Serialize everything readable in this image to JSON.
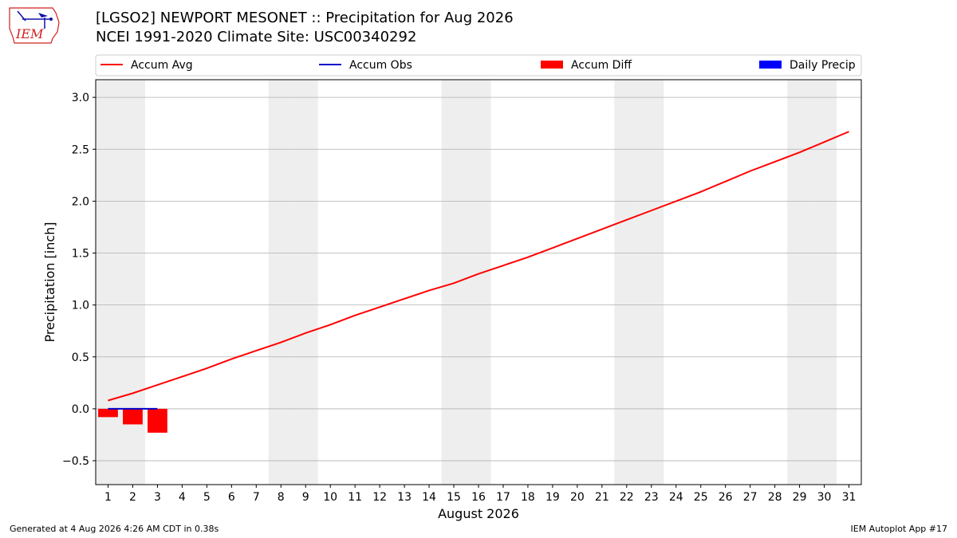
{
  "header": {
    "title_line1": "[LGSO2] NEWPORT MESONET :: Precipitation for Aug 2026",
    "title_line2": "NCEI 1991-2020 Climate Site: USC00340292",
    "logo_text": "IEM"
  },
  "footer": {
    "generated": "Generated at 4 Aug 2026 4:26 AM CDT in 0.38s",
    "app": "IEM Autoplot App #17"
  },
  "colors": {
    "accum_avg": "#ff0000",
    "accum_obs": "#0000cc",
    "accum_diff": "#ff0000",
    "daily_precip": "#0000ff",
    "weekend_shade": "#eeeeee",
    "grid": "#b0b0b0"
  },
  "chart_data": {
    "type": "line",
    "xlabel": "August 2026",
    "ylabel": "Precipitation [inch]",
    "xlim": [
      0.5,
      31.5
    ],
    "ylim": [
      -0.73,
      3.17
    ],
    "x_ticks": [
      1,
      2,
      3,
      4,
      5,
      6,
      7,
      8,
      9,
      10,
      11,
      12,
      13,
      14,
      15,
      16,
      17,
      18,
      19,
      20,
      21,
      22,
      23,
      24,
      25,
      26,
      27,
      28,
      29,
      30,
      31
    ],
    "y_ticks": [
      -0.5,
      0.0,
      0.5,
      1.0,
      1.5,
      2.0,
      2.5,
      3.0
    ],
    "y_tick_labels": [
      "−0.5",
      "0.0",
      "0.5",
      "1.0",
      "1.5",
      "2.0",
      "2.5",
      "3.0"
    ],
    "grid": "horizontal",
    "legend_position": "top",
    "legend": [
      "Accum Avg",
      "Accum Obs",
      "Accum Diff",
      "Daily Precip"
    ],
    "weekend_days": [
      1,
      2,
      8,
      9,
      15,
      16,
      22,
      23,
      29,
      30
    ],
    "series": [
      {
        "name": "Accum Avg",
        "kind": "line",
        "x": [
          1,
          2,
          3,
          4,
          5,
          6,
          7,
          8,
          9,
          10,
          11,
          12,
          13,
          14,
          15,
          16,
          17,
          18,
          19,
          20,
          21,
          22,
          23,
          24,
          25,
          26,
          27,
          28,
          29,
          30,
          31
        ],
        "values": [
          0.08,
          0.15,
          0.23,
          0.31,
          0.39,
          0.48,
          0.56,
          0.64,
          0.73,
          0.81,
          0.9,
          0.98,
          1.06,
          1.14,
          1.21,
          1.3,
          1.38,
          1.46,
          1.55,
          1.64,
          1.73,
          1.82,
          1.91,
          2.0,
          2.09,
          2.19,
          2.29,
          2.38,
          2.47,
          2.57,
          2.67
        ]
      },
      {
        "name": "Accum Obs",
        "kind": "line",
        "x": [
          1,
          2,
          3
        ],
        "values": [
          0.0,
          0.0,
          0.0
        ]
      },
      {
        "name": "Accum Diff",
        "kind": "bar",
        "x": [
          1,
          2,
          3
        ],
        "values": [
          -0.08,
          -0.15,
          -0.23
        ]
      },
      {
        "name": "Daily Precip",
        "kind": "bar",
        "x": [
          1,
          2,
          3
        ],
        "values": [
          0.0,
          0.0,
          0.0
        ]
      }
    ]
  }
}
